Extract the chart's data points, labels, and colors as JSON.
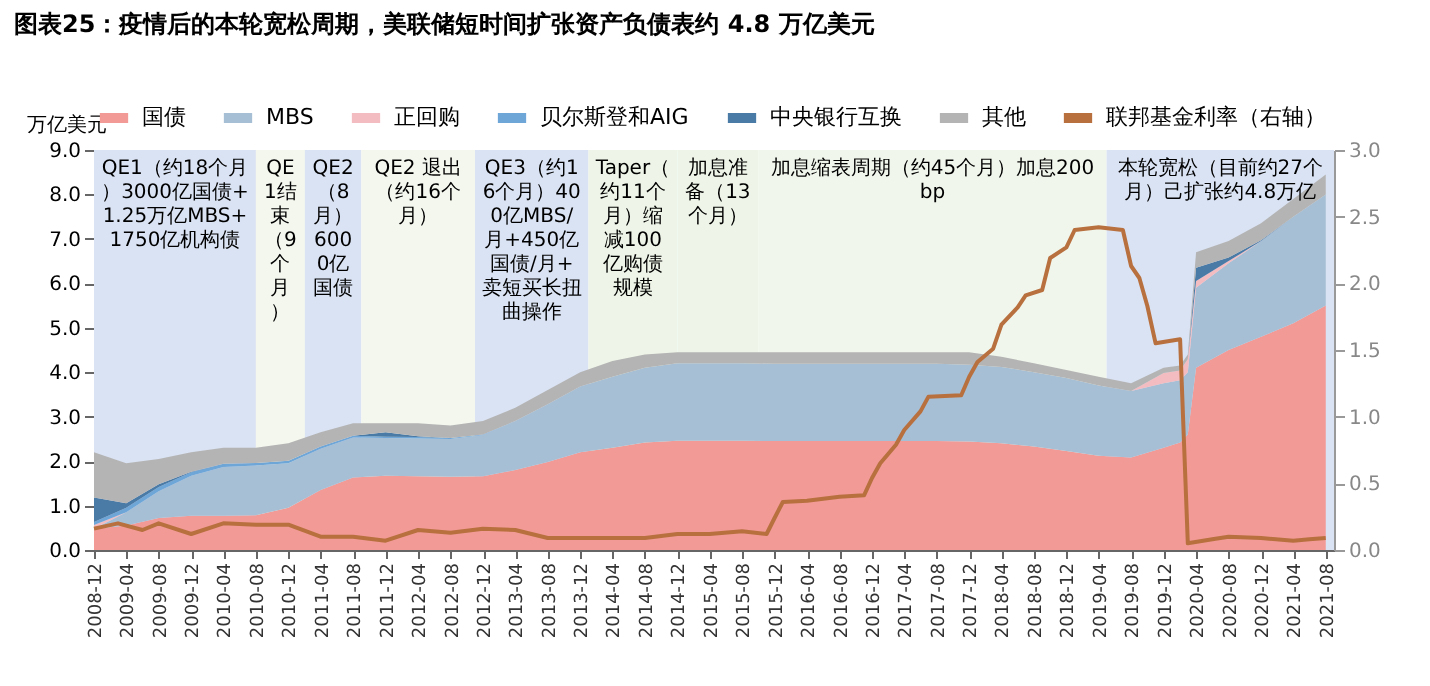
{
  "chart_data": {
    "type": "area",
    "title": "图表25：疫情后的本轮宽松周期，美联储短时间扩张资产负债表约 4.8 万亿美元",
    "ylabel": "万亿美元",
    "stacked": true,
    "legend": "top",
    "x": [
      "2008-12",
      "2009-04",
      "2009-08",
      "2009-12",
      "2010-04",
      "2010-08",
      "2010-12",
      "2011-04",
      "2011-08",
      "2011-12",
      "2012-04",
      "2012-08",
      "2012-12",
      "2013-04",
      "2013-08",
      "2013-12",
      "2014-04",
      "2014-08",
      "2014-12",
      "2015-04",
      "2015-08",
      "2015-12",
      "2016-04",
      "2016-08",
      "2016-12",
      "2017-04",
      "2017-08",
      "2017-12",
      "2018-04",
      "2018-08",
      "2018-12",
      "2019-04",
      "2019-08",
      "2019-12",
      "2020-02",
      "2020-03",
      "2020-04",
      "2020-08",
      "2020-12",
      "2021-04",
      "2021-08"
    ],
    "xlim": [
      "2008-12",
      "2021-09"
    ],
    "xticks": [
      "2008-12",
      "2009-04",
      "2009-08",
      "2009-12",
      "2010-04",
      "2010-08",
      "2010-12",
      "2011-04",
      "2011-08",
      "2011-12",
      "2012-04",
      "2012-08",
      "2012-12",
      "2013-04",
      "2013-08",
      "2013-12",
      "2014-04",
      "2014-08",
      "2014-12",
      "2015-04",
      "2015-08",
      "2015-12",
      "2016-04",
      "2016-08",
      "2016-12",
      "2017-04",
      "2017-08",
      "2017-12",
      "2018-04",
      "2018-08",
      "2018-12",
      "2019-04",
      "2019-08",
      "2019-12",
      "2020-04",
      "2020-08",
      "2020-12",
      "2021-04",
      "2021-08"
    ],
    "ylim": [
      0,
      9
    ],
    "yticks": [
      {
        "value": 0,
        "label": "0.0"
      },
      {
        "value": 1,
        "label": "1.0"
      },
      {
        "value": 2,
        "label": "2.0"
      },
      {
        "value": 3,
        "label": "3.0"
      },
      {
        "value": 4,
        "label": "4.0"
      },
      {
        "value": 5,
        "label": "5.0"
      },
      {
        "value": 6,
        "label": "6.0"
      },
      {
        "value": 7,
        "label": "7.0"
      },
      {
        "value": 8,
        "label": "8.0"
      },
      {
        "value": 9,
        "label": "9.0"
      }
    ],
    "y2lim": [
      0,
      3
    ],
    "y2ticks": [
      {
        "value": 0,
        "label": "0.0"
      },
      {
        "value": 0.5,
        "label": "0.5"
      },
      {
        "value": 1,
        "label": "1.0"
      },
      {
        "value": 1.5,
        "label": "1.5"
      },
      {
        "value": 2,
        "label": "2.0"
      },
      {
        "value": 2.5,
        "label": "2.5"
      },
      {
        "value": 3,
        "label": "3.0"
      }
    ],
    "series": [
      {
        "name": "国债",
        "color": "#f29a96",
        "values": [
          0.48,
          0.55,
          0.72,
          0.77,
          0.77,
          0.78,
          0.95,
          1.35,
          1.63,
          1.67,
          1.66,
          1.65,
          1.66,
          1.8,
          1.98,
          2.2,
          2.3,
          2.42,
          2.46,
          2.46,
          2.46,
          2.45,
          2.45,
          2.45,
          2.45,
          2.45,
          2.45,
          2.44,
          2.4,
          2.33,
          2.23,
          2.12,
          2.08,
          2.3,
          2.42,
          2.6,
          4.1,
          4.5,
          4.8,
          5.1,
          5.5
        ]
      },
      {
        "name": "MBS",
        "color": "#a7bfd4",
        "values": [
          0,
          0.3,
          0.6,
          0.9,
          1.1,
          1.12,
          1.0,
          0.93,
          0.9,
          0.85,
          0.85,
          0.85,
          0.93,
          1.1,
          1.3,
          1.48,
          1.6,
          1.68,
          1.74,
          1.74,
          1.74,
          1.74,
          1.74,
          1.74,
          1.74,
          1.74,
          1.74,
          1.73,
          1.72,
          1.67,
          1.64,
          1.58,
          1.5,
          1.45,
          1.4,
          1.4,
          1.8,
          1.95,
          2.15,
          2.4,
          2.5
        ]
      },
      {
        "name": "正回购",
        "color": "#f3bcc0",
        "values": [
          0.08,
          0,
          null,
          null,
          null,
          null,
          null,
          null,
          null,
          null,
          null,
          null,
          null,
          null,
          null,
          null,
          null,
          null,
          null,
          null,
          null,
          null,
          null,
          null,
          null,
          null,
          null,
          null,
          null,
          null,
          null,
          null,
          0,
          0.23,
          0.22,
          0.3,
          0.15,
          0.05,
          0,
          null,
          null
        ]
      },
      {
        "name": "贝尔斯登和AIG",
        "color": "#6fa6d8",
        "values": [
          0.07,
          0.1,
          0.1,
          0.08,
          0.07,
          0.06,
          0.06,
          0.05,
          0.04,
          0.03,
          0.03,
          0.02,
          0.01,
          0,
          null,
          null,
          null,
          null,
          null,
          null,
          null,
          null,
          null,
          null,
          null,
          null,
          null,
          null,
          null,
          null,
          null,
          null,
          null,
          null,
          null,
          null,
          null,
          null,
          null,
          null,
          null
        ]
      },
      {
        "name": "中央银行互换",
        "color": "#4a7aa6",
        "values": [
          0.55,
          0.1,
          0.06,
          0.01,
          0,
          null,
          null,
          null,
          0,
          0.1,
          0.02,
          0,
          null,
          null,
          null,
          null,
          null,
          null,
          null,
          null,
          null,
          null,
          null,
          null,
          null,
          null,
          null,
          null,
          null,
          null,
          null,
          null,
          null,
          null,
          null,
          0,
          0.3,
          0.08,
          0.02,
          0,
          null
        ]
      },
      {
        "name": "其他",
        "color": "#b4b4b4",
        "values": [
          1.02,
          0.9,
          0.57,
          0.44,
          0.36,
          0.34,
          0.39,
          0.32,
          0.28,
          0.2,
          0.29,
          0.28,
          0.3,
          0.3,
          0.32,
          0.32,
          0.35,
          0.3,
          0.25,
          0.25,
          0.25,
          0.26,
          0.26,
          0.26,
          0.26,
          0.26,
          0.26,
          0.28,
          0.23,
          0.2,
          0.18,
          0.2,
          0.17,
          0.12,
          0.11,
          0.1,
          0.35,
          0.37,
          0.38,
          0.4,
          0.45
        ]
      },
      {
        "name": "联邦基金利率（右轴）",
        "type": "line",
        "axis": "y2",
        "color": "#b8703f",
        "x": [
          "2008-12",
          "2009-03",
          "2009-06",
          "2009-08",
          "2009-12",
          "2010-04",
          "2010-08",
          "2010-12",
          "2011-04",
          "2011-08",
          "2011-12",
          "2012-04",
          "2012-08",
          "2012-12",
          "2013-04",
          "2013-08",
          "2013-12",
          "2014-04",
          "2014-08",
          "2014-12",
          "2015-04",
          "2015-08",
          "2015-11",
          "2015-12",
          "2016-01",
          "2016-04",
          "2016-08",
          "2016-11",
          "2016-12",
          "2017-01",
          "2017-03",
          "2017-04",
          "2017-06",
          "2017-07",
          "2017-11",
          "2017-12",
          "2018-01",
          "2018-03",
          "2018-04",
          "2018-06",
          "2018-07",
          "2018-09",
          "2018-10",
          "2018-12",
          "2019-01",
          "2019-04",
          "2019-07",
          "2019-08",
          "2019-09",
          "2019-10",
          "2019-11",
          "2020-02",
          "2020-03",
          "2020-06",
          "2020-08",
          "2020-12",
          "2021-04",
          "2021-06",
          "2021-08"
        ],
        "values": [
          0.16,
          0.2,
          0.15,
          0.2,
          0.12,
          0.2,
          0.19,
          0.19,
          0.1,
          0.1,
          0.07,
          0.15,
          0.13,
          0.16,
          0.15,
          0.09,
          0.09,
          0.09,
          0.09,
          0.12,
          0.12,
          0.14,
          0.12,
          0.24,
          0.36,
          0.37,
          0.4,
          0.41,
          0.54,
          0.65,
          0.79,
          0.9,
          1.04,
          1.15,
          1.16,
          1.3,
          1.41,
          1.51,
          1.69,
          1.82,
          1.91,
          1.95,
          2.19,
          2.27,
          2.4,
          2.42,
          2.4,
          2.13,
          2.04,
          1.83,
          1.55,
          1.58,
          0.05,
          0.08,
          0.1,
          0.09,
          0.07,
          0.08,
          0.09
        ]
      }
    ],
    "bands": [
      {
        "axis": "x",
        "from": "2008-12",
        "to": "2010-08",
        "color": "#dae3f3",
        "label": "QE1（约18个月）3000亿国债+1.25万亿MBS+1750亿机构债"
      },
      {
        "axis": "x",
        "from": "2010-08",
        "to": "2011-02",
        "color": "#f3f7ee",
        "label": "QE1结束（9个月）"
      },
      {
        "axis": "x",
        "from": "2011-02",
        "to": "2011-09",
        "color": "#dae3f3",
        "label": "QE2（8月）6000亿国债"
      },
      {
        "axis": "x",
        "from": "2011-09",
        "to": "2012-11",
        "color": "#f3f7ee",
        "label": "QE2 退出（约16个月）"
      },
      {
        "axis": "x",
        "from": "2012-11",
        "to": "2014-01",
        "color": "#dae3f3",
        "label": "QE3（约16个月）400亿MBS/月+450亿国债/月+卖短买长扭曲操作"
      },
      {
        "axis": "x",
        "from": "2014-01",
        "to": "2014-12",
        "color": "#eef5e8",
        "label": "Taper（约11个月）缩减100亿购债规模"
      },
      {
        "axis": "x",
        "from": "2014-12",
        "to": "2015-10",
        "color": "#eef5e8",
        "label": "加息准备（13个月）"
      },
      {
        "axis": "x",
        "from": "2015-10",
        "to": "2019-05",
        "color": "#f0f6ec",
        "label": "加息缩表周期（约45个月）加息200bp"
      },
      {
        "axis": "x",
        "from": "2019-05",
        "to": "2021-09",
        "color": "#dae3f3",
        "label": "本轮宽松（目前约27个月）己扩张约4.8万亿"
      }
    ]
  }
}
